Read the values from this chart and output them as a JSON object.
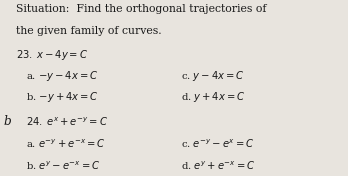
{
  "background_color": "#e8e4de",
  "text_color": "#1a1a1a",
  "font_size_title": 7.8,
  "font_size_body": 7.2,
  "font_size_small": 6.8,
  "title_line1": "Situation:  Find the orthogonal trajectories of",
  "title_line2": "the given family of curves.",
  "q23_label": "$23.\\; x - 4y = C$",
  "q23_a": "a. $-y - 4x = C$",
  "q23_b": "b. $-y + 4x = C$",
  "q23_c": "c. $y - 4x = C$",
  "q23_d": "d. $y + 4x = C$",
  "q24_prefix": "b",
  "q24_label": "$24.\\; e^x + e^{-y} = C$",
  "q24_a": "a. $e^{-y} + e^{-x} = C$",
  "q24_b": "b. $e^{y} - e^{-x} = C$",
  "q24_c": "c. $e^{-y} - e^{x} = C$",
  "q24_d": "d. $e^{y} + e^{-x} = C$"
}
